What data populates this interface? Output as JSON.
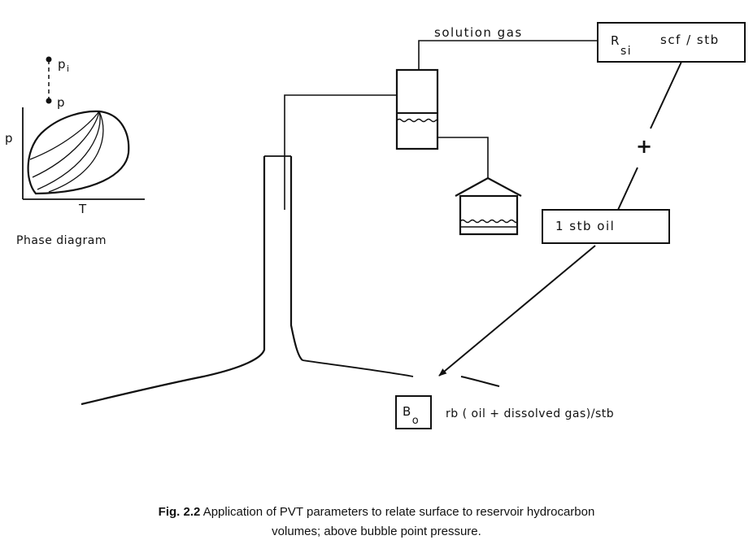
{
  "phase_diagram": {
    "axis_y": "p",
    "axis_x": "T",
    "point_initial": "p",
    "point_initial_subscript": "i",
    "point_current": "p",
    "title": "Phase diagram"
  },
  "labels": {
    "solution_gas": "solution gas",
    "rsi_symbol": "R",
    "rsi_subscript": "si",
    "rsi_units": "scf / stb",
    "plus": "+",
    "stock_tank_oil": "1 stb oil",
    "bo_symbol": "B",
    "bo_subscript": "o",
    "bo_units": "rb ( oil + dissolved gas)/stb"
  },
  "caption": {
    "number": "Fig. 2.2",
    "line1": "Application of PVT parameters to relate surface to reservoir hydrocarbon",
    "line2": "volumes; above bubble point pressure."
  }
}
